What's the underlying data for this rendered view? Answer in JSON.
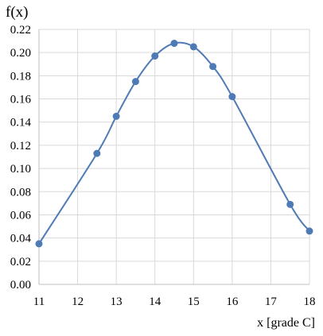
{
  "chart_data": {
    "type": "scatter",
    "title": "",
    "xlabel": "x [grade C]",
    "ylabel": "f(x)",
    "xlim": [
      11,
      18
    ],
    "ylim": [
      0,
      0.22
    ],
    "x_ticks": [
      "11",
      "12",
      "13",
      "14",
      "15",
      "16",
      "17",
      "18"
    ],
    "y_ticks": [
      "0.00",
      "0.02",
      "0.04",
      "0.06",
      "0.08",
      "0.10",
      "0.12",
      "0.14",
      "0.16",
      "0.18",
      "0.20",
      "0.22"
    ],
    "grid": "vertical gridlines on, horizontal gridlines on",
    "smoothed_line": true,
    "series": [
      {
        "name": "",
        "color": "#4e7ab5",
        "points": [
          {
            "x": 11.0,
            "y": 0.035
          },
          {
            "x": 12.5,
            "y": 0.113
          },
          {
            "x": 13.0,
            "y": 0.145
          },
          {
            "x": 13.5,
            "y": 0.175
          },
          {
            "x": 14.0,
            "y": 0.197
          },
          {
            "x": 14.5,
            "y": 0.208
          },
          {
            "x": 15.0,
            "y": 0.205
          },
          {
            "x": 15.5,
            "y": 0.188
          },
          {
            "x": 16.0,
            "y": 0.162
          },
          {
            "x": 17.5,
            "y": 0.069
          },
          {
            "x": 18.0,
            "y": 0.046
          }
        ]
      }
    ]
  }
}
